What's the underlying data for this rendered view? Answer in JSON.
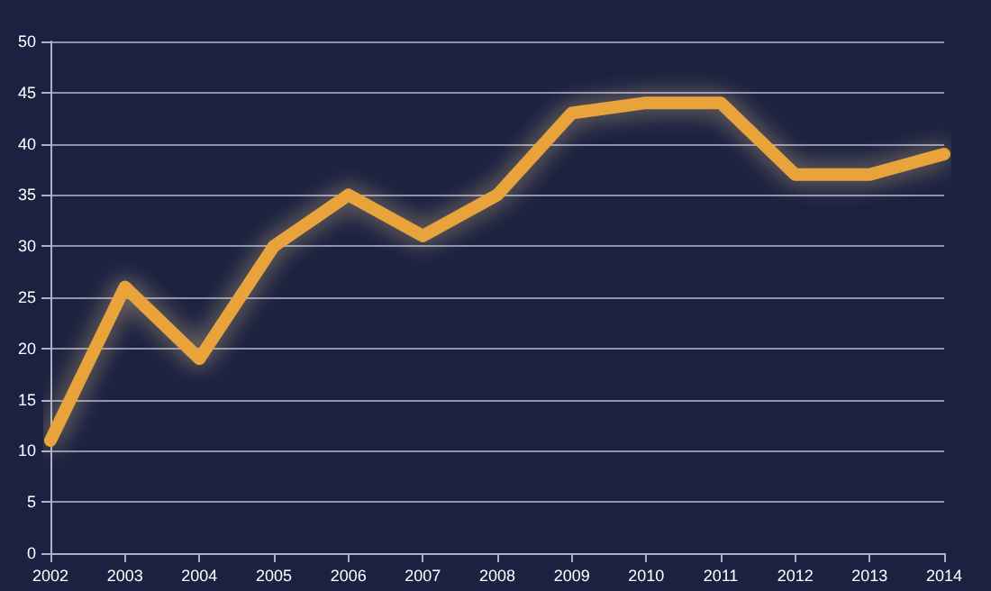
{
  "chart_data": {
    "type": "line",
    "categories": [
      "2002",
      "2003",
      "2004",
      "2005",
      "2006",
      "2007",
      "2008",
      "2009",
      "2010",
      "2011",
      "2012",
      "2013",
      "2014"
    ],
    "series": [
      {
        "color": "#e8a33a",
        "values": [
          11,
          26,
          19,
          30,
          35,
          31,
          35,
          43,
          44,
          44,
          37,
          37,
          39
        ]
      }
    ],
    "ylim": [
      0,
      50
    ],
    "yticks": [
      0,
      5,
      10,
      15,
      20,
      25,
      30,
      35,
      40,
      45,
      50
    ],
    "grid": "y",
    "line_style": "solid"
  }
}
